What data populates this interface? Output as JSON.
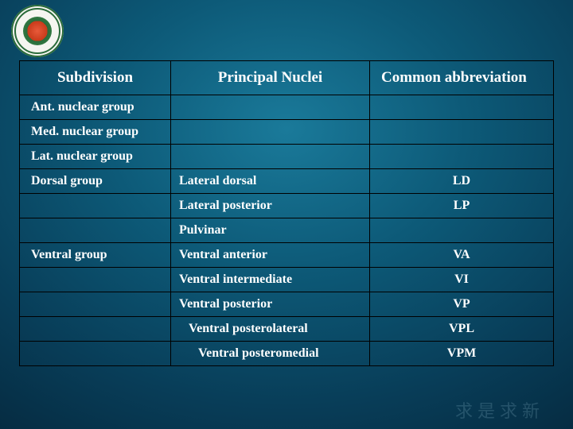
{
  "logo": {
    "name": "university-seal"
  },
  "table": {
    "headers": {
      "c1": "Subdivision",
      "c2": "Principal Nuclei",
      "c3": "Common abbreviation"
    },
    "rows": [
      {
        "sub": "Ant. nuclear group",
        "nuc": "",
        "abbr": "",
        "indent": 0
      },
      {
        "sub": "Med. nuclear group",
        "nuc": "",
        "abbr": "",
        "indent": 0
      },
      {
        "sub": "Lat. nuclear group",
        "nuc": "",
        "abbr": "",
        "indent": 0
      },
      {
        "sub": " Dorsal group",
        "nuc": "Lateral dorsal",
        "abbr": "LD",
        "indent": 0
      },
      {
        "sub": "",
        "nuc": "Lateral posterior",
        "abbr": "LP",
        "indent": 0
      },
      {
        "sub": "",
        "nuc": "Pulvinar",
        "abbr": "",
        "indent": 0
      },
      {
        "sub": " Ventral group",
        "nuc": "Ventral anterior",
        "abbr": "VA",
        "indent": 0
      },
      {
        "sub": "",
        "nuc": "Ventral intermediate",
        "abbr": "VI",
        "indent": 0
      },
      {
        "sub": "",
        "nuc": "Ventral posterior",
        "abbr": "VP",
        "indent": 0
      },
      {
        "sub": "",
        "nuc": "Ventral posterolateral",
        "abbr": "VPL",
        "indent": 1
      },
      {
        "sub": "",
        "nuc": "Ventral posteromedial",
        "abbr": "VPM",
        "indent": 2
      }
    ]
  },
  "colors": {
    "border": "#000000",
    "text": "#ffffff",
    "bg_center": "#1a7a9a",
    "bg_edge": "#01121f"
  },
  "watermark": "求是求新"
}
